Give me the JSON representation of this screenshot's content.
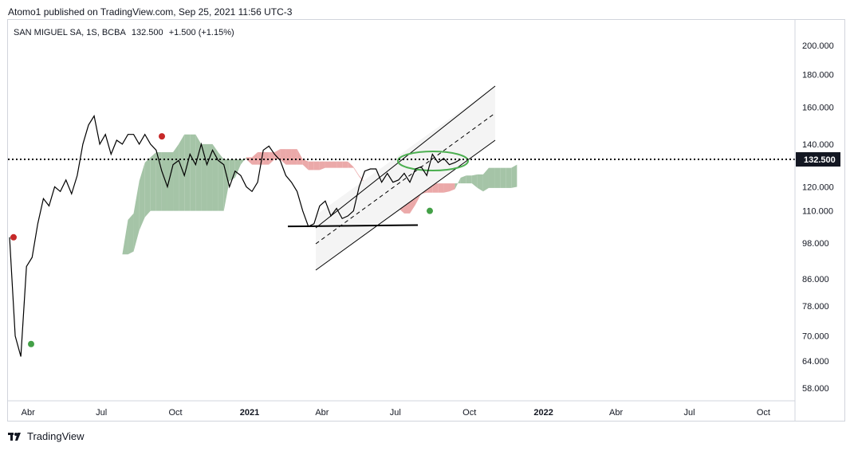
{
  "header": {
    "published_text": "Atomo1 published on TradingView.com, Sep 25, 2021 11:56 UTC-3"
  },
  "legend": {
    "symbol": "SAN MIGUEL SA, 1S, BCBA",
    "price": "132.500",
    "change": "+1.500 (+1.15%)"
  },
  "footer": {
    "brand": "TradingView",
    "logo_icon": "tradingview-logo-icon"
  },
  "colors": {
    "bull_cloud": "#a5c4a7",
    "bear_cloud": "#eba9a9",
    "price_line": "#000000",
    "channel": "#000000",
    "ellipse": "#4caf50",
    "dot_red": "#c62828",
    "dot_green": "#43a047",
    "label_bg": "#131722"
  },
  "chart_data": {
    "type": "line",
    "scale": "log",
    "ylim": [
      55,
      215
    ],
    "y_ticks": [
      "200.000",
      "180.000",
      "160.000",
      "140.000",
      "120.000",
      "110.000",
      "98.000",
      "86.000",
      "78.000",
      "70.000",
      "64.000",
      "58.000"
    ],
    "x_ticks": [
      "Abr",
      "Jul",
      "Oct",
      "2021",
      "Abr",
      "Jul",
      "Oct",
      "2022",
      "Abr",
      "Jul",
      "Oct"
    ],
    "x_tick_dates": [
      "2020-04-01",
      "2020-07-01",
      "2020-10-01",
      "2021-01-01",
      "2021-04-01",
      "2021-07-01",
      "2021-10-01",
      "2022-01-01",
      "2022-04-01",
      "2022-07-01",
      "2022-10-01"
    ],
    "last_price_label": "132.500",
    "last_price": 132.5,
    "series": [
      {
        "points": [
          [
            "2020-03-09",
            100
          ],
          [
            "2020-03-16",
            70
          ],
          [
            "2020-03-23",
            65
          ],
          [
            "2020-03-30",
            90
          ],
          [
            "2020-04-06",
            93
          ],
          [
            "2020-04-13",
            105
          ],
          [
            "2020-04-20",
            115
          ],
          [
            "2020-04-27",
            112
          ],
          [
            "2020-05-04",
            120
          ],
          [
            "2020-05-11",
            118
          ],
          [
            "2020-05-18",
            123
          ],
          [
            "2020-05-25",
            117
          ],
          [
            "2020-06-01",
            125
          ],
          [
            "2020-06-08",
            140
          ],
          [
            "2020-06-15",
            150
          ],
          [
            "2020-06-22",
            155
          ],
          [
            "2020-06-29",
            140
          ],
          [
            "2020-07-06",
            145
          ],
          [
            "2020-07-13",
            135
          ],
          [
            "2020-07-20",
            142
          ],
          [
            "2020-07-27",
            140
          ],
          [
            "2020-08-03",
            145
          ],
          [
            "2020-08-10",
            145
          ],
          [
            "2020-08-17",
            140
          ],
          [
            "2020-08-24",
            145
          ],
          [
            "2020-08-31",
            140
          ],
          [
            "2020-09-07",
            137
          ],
          [
            "2020-09-14",
            127
          ],
          [
            "2020-09-21",
            120
          ],
          [
            "2020-09-28",
            130
          ],
          [
            "2020-10-05",
            132
          ],
          [
            "2020-10-12",
            125
          ],
          [
            "2020-10-19",
            135
          ],
          [
            "2020-10-26",
            130
          ],
          [
            "2020-11-02",
            140
          ],
          [
            "2020-11-09",
            130
          ],
          [
            "2020-11-16",
            137
          ],
          [
            "2020-11-23",
            132
          ],
          [
            "2020-11-30",
            130
          ],
          [
            "2020-12-07",
            120
          ],
          [
            "2020-12-14",
            127
          ],
          [
            "2020-12-21",
            125
          ],
          [
            "2020-12-28",
            120
          ],
          [
            "2021-01-04",
            118
          ],
          [
            "2021-01-11",
            122
          ],
          [
            "2021-01-18",
            137
          ],
          [
            "2021-01-25",
            139
          ],
          [
            "2021-02-01",
            135
          ],
          [
            "2021-02-08",
            132
          ],
          [
            "2021-02-15",
            125
          ],
          [
            "2021-02-22",
            122
          ],
          [
            "2021-03-01",
            118
          ],
          [
            "2021-03-08",
            110
          ],
          [
            "2021-03-15",
            104
          ],
          [
            "2021-03-22",
            105
          ],
          [
            "2021-03-29",
            112
          ],
          [
            "2021-04-05",
            114
          ],
          [
            "2021-04-12",
            108
          ],
          [
            "2021-04-19",
            111
          ],
          [
            "2021-04-26",
            107
          ],
          [
            "2021-05-03",
            108
          ],
          [
            "2021-05-10",
            110
          ],
          [
            "2021-05-17",
            120
          ],
          [
            "2021-05-24",
            127
          ],
          [
            "2021-05-31",
            128
          ],
          [
            "2021-06-07",
            128
          ],
          [
            "2021-06-14",
            122
          ],
          [
            "2021-06-21",
            126
          ],
          [
            "2021-06-28",
            122
          ],
          [
            "2021-07-05",
            123
          ],
          [
            "2021-07-12",
            126
          ],
          [
            "2021-07-19",
            122
          ],
          [
            "2021-07-26",
            128
          ],
          [
            "2021-08-02",
            129
          ],
          [
            "2021-08-09",
            125
          ],
          [
            "2021-08-16",
            135
          ],
          [
            "2021-08-23",
            131
          ],
          [
            "2021-08-30",
            133
          ],
          [
            "2021-09-06",
            130
          ],
          [
            "2021-09-13",
            131
          ],
          [
            "2021-09-20",
            132.5
          ]
        ]
      }
    ]
  }
}
